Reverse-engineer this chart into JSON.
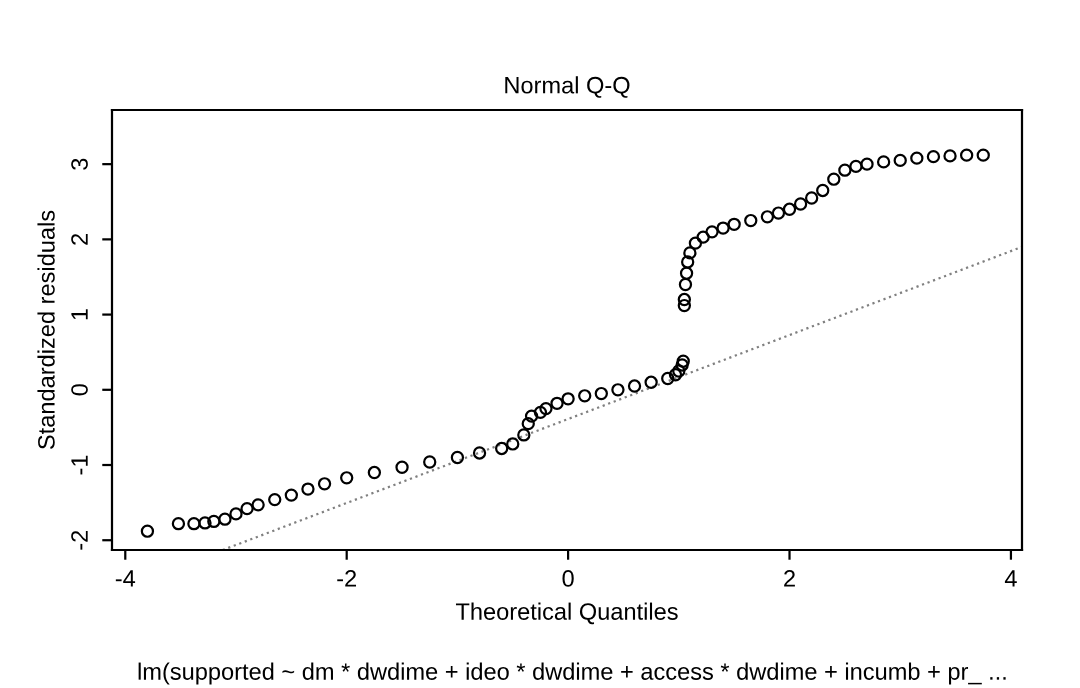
{
  "chart_data": {
    "type": "scatter",
    "title": "Normal Q-Q",
    "xlabel": "Theoretical Quantiles",
    "ylabel": "Standardized residuals",
    "annotations": [
      "lm(supported ~ dm * dwdime + ideo * dwdime + access * dwdime + incumb + pr_ ..."
    ],
    "grid": false,
    "legend": false,
    "xlim": [
      -4.12,
      4.1
    ],
    "ylim": [
      -2.13,
      3.72
    ],
    "xticks": [
      -4,
      -2,
      0,
      2,
      4
    ],
    "yticks": [
      -2,
      -1,
      0,
      1,
      2,
      3
    ],
    "series": [
      {
        "marker": "circle",
        "color": "#000000",
        "x": [
          -3.8,
          -3.52,
          -3.38,
          -3.28,
          -3.2,
          -3.1,
          -3.0,
          -2.9,
          -2.8,
          -2.65,
          -2.5,
          -2.35,
          -2.2,
          -2.0,
          -1.75,
          -1.5,
          -1.25,
          -1.0,
          -0.8,
          -0.6,
          -0.5,
          -0.4,
          -0.36,
          -0.33,
          -0.25,
          -0.2,
          -0.1,
          0,
          0.15,
          0.3,
          0.45,
          0.6,
          0.75,
          0.9,
          0.97,
          1.0,
          1.03,
          1.04,
          1.05,
          1.05,
          1.06,
          1.07,
          1.08,
          1.1,
          1.15,
          1.22,
          1.3,
          1.4,
          1.5,
          1.65,
          1.8,
          1.9,
          2.0,
          2.1,
          2.2,
          2.3,
          2.4,
          2.5,
          2.6,
          2.7,
          2.85,
          3.0,
          3.15,
          3.3,
          3.45,
          3.6,
          3.75
        ],
        "values": [
          -1.88,
          -1.78,
          -1.78,
          -1.77,
          -1.75,
          -1.72,
          -1.65,
          -1.58,
          -1.53,
          -1.46,
          -1.4,
          -1.32,
          -1.25,
          -1.17,
          -1.1,
          -1.03,
          -0.96,
          -0.9,
          -0.84,
          -0.78,
          -0.72,
          -0.6,
          -0.45,
          -0.35,
          -0.3,
          -0.25,
          -0.18,
          -0.12,
          -0.08,
          -0.05,
          0.0,
          0.05,
          0.1,
          0.15,
          0.2,
          0.25,
          0.33,
          0.38,
          1.12,
          1.2,
          1.4,
          1.55,
          1.7,
          1.82,
          1.95,
          2.03,
          2.1,
          2.15,
          2.2,
          2.25,
          2.3,
          2.35,
          2.4,
          2.47,
          2.55,
          2.65,
          2.8,
          2.92,
          2.97,
          3.0,
          3.03,
          3.05,
          3.08,
          3.1,
          3.11,
          3.12,
          3.12
        ]
      },
      {
        "type": "line",
        "color": "#808080",
        "line_style": "dotted",
        "x": [
          -3.12,
          4.1
        ],
        "values": [
          -2.13,
          1.9
        ]
      }
    ]
  }
}
